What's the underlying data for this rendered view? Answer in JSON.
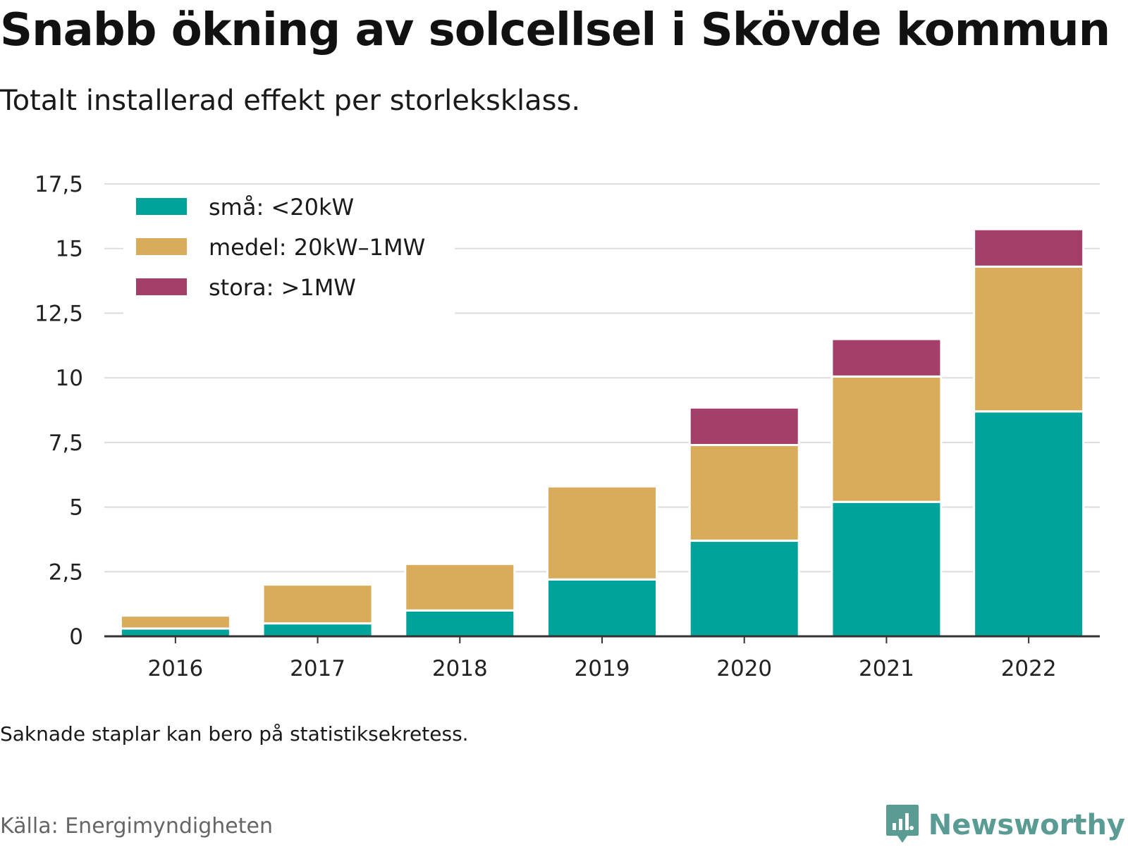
{
  "header": {
    "title": "Snabb ökning av solcellsel i Skövde kommun",
    "subtitle": "Totalt installerad effekt per storleksklass."
  },
  "footer": {
    "note": "Saknade staplar kan bero på statistiksekretess.",
    "source": "Källa: Energimyndigheten",
    "brand": "Newsworthy"
  },
  "colors": {
    "small": "#00a39a",
    "medium": "#d9ac5b",
    "large": "#a33f68",
    "grid": "#dddddd",
    "axis": "#333333",
    "brand": "#5a9b94"
  },
  "chart_data": {
    "type": "bar",
    "stacked": true,
    "categories": [
      "2016",
      "2017",
      "2018",
      "2019",
      "2020",
      "2021",
      "2022"
    ],
    "series": [
      {
        "name": "små: <20kW",
        "color": "#00a39a",
        "values": [
          0.3,
          0.5,
          1.0,
          2.2,
          3.7,
          5.2,
          8.7
        ]
      },
      {
        "name": "medel: 20kW–1MW",
        "color": "#d9ac5b",
        "values": [
          0.5,
          1.5,
          1.8,
          3.6,
          3.7,
          4.85,
          5.6
        ]
      },
      {
        "name": "stora: >1MW",
        "color": "#a33f68",
        "values": [
          0,
          0,
          0,
          0,
          1.45,
          1.45,
          1.45
        ]
      }
    ],
    "yticks": [
      "0",
      "2,5",
      "5",
      "7,5",
      "10",
      "12,5",
      "15",
      "17,5"
    ],
    "ylim": [
      0,
      17.5
    ],
    "grid": true,
    "legend_position": "top-left",
    "xlabel": "",
    "ylabel": ""
  }
}
